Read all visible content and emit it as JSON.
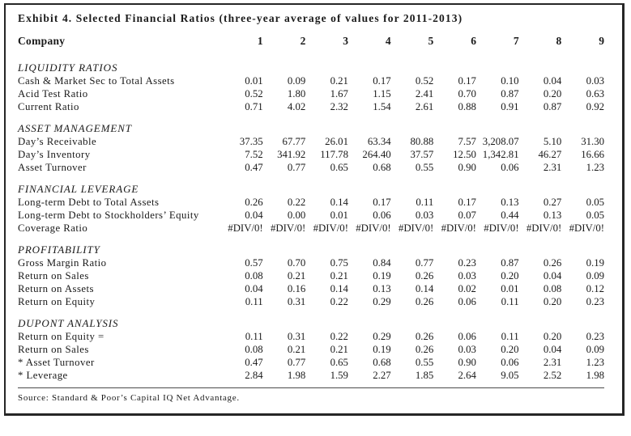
{
  "title": "Exhibit 4. Selected Financial Ratios (three-year average of values for 2011-2013)",
  "table": {
    "label_header": "Company",
    "column_headers": [
      "1",
      "2",
      "3",
      "4",
      "5",
      "6",
      "7",
      "8",
      "9"
    ],
    "sections": [
      {
        "name": "LIQUIDITY RATIOS",
        "rows": [
          {
            "label": "Cash & Market Sec to Total Assets",
            "values": [
              "0.01",
              "0.09",
              "0.21",
              "0.17",
              "0.52",
              "0.17",
              "0.10",
              "0.04",
              "0.03"
            ]
          },
          {
            "label": "Acid Test Ratio",
            "values": [
              "0.52",
              "1.80",
              "1.67",
              "1.15",
              "2.41",
              "0.70",
              "0.87",
              "0.20",
              "0.63"
            ]
          },
          {
            "label": "Current Ratio",
            "values": [
              "0.71",
              "4.02",
              "2.32",
              "1.54",
              "2.61",
              "0.88",
              "0.91",
              "0.87",
              "0.92"
            ]
          }
        ]
      },
      {
        "name": "ASSET MANAGEMENT",
        "rows": [
          {
            "label": "Day’s Receivable",
            "values": [
              "37.35",
              "67.77",
              "26.01",
              "63.34",
              "80.88",
              "7.57",
              "3,208.07",
              "5.10",
              "31.30"
            ]
          },
          {
            "label": "Day’s Inventory",
            "values": [
              "7.52",
              "341.92",
              "117.78",
              "264.40",
              "37.57",
              "12.50",
              "1,342.81",
              "46.27",
              "16.66"
            ]
          },
          {
            "label": "Asset Turnover",
            "values": [
              "0.47",
              "0.77",
              "0.65",
              "0.68",
              "0.55",
              "0.90",
              "0.06",
              "2.31",
              "1.23"
            ]
          }
        ]
      },
      {
        "name": "FINANCIAL LEVERAGE",
        "rows": [
          {
            "label": "Long-term Debt to Total Assets",
            "values": [
              "0.26",
              "0.22",
              "0.14",
              "0.17",
              "0.11",
              "0.17",
              "0.13",
              "0.27",
              "0.05"
            ]
          },
          {
            "label": "Long-term Debt to Stockholders’ Equity",
            "values": [
              "0.04",
              "0.00",
              "0.01",
              "0.06",
              "0.03",
              "0.07",
              "0.44",
              "0.13",
              "0.05"
            ]
          },
          {
            "label": "Coverage Ratio",
            "values": [
              "#DIV/0!",
              "#DIV/0!",
              "#DIV/0!",
              "#DIV/0!",
              "#DIV/0!",
              "#DIV/0!",
              "#DIV/0!",
              "#DIV/0!",
              "#DIV/0!"
            ]
          }
        ]
      },
      {
        "name": "PROFITABILITY",
        "rows": [
          {
            "label": "Gross Margin Ratio",
            "values": [
              "0.57",
              "0.70",
              "0.75",
              "0.84",
              "0.77",
              "0.23",
              "0.87",
              "0.26",
              "0.19"
            ]
          },
          {
            "label": "Return on Sales",
            "values": [
              "0.08",
              "0.21",
              "0.21",
              "0.19",
              "0.26",
              "0.03",
              "0.20",
              "0.04",
              "0.09"
            ]
          },
          {
            "label": "Return on Assets",
            "values": [
              "0.04",
              "0.16",
              "0.14",
              "0.13",
              "0.14",
              "0.02",
              "0.01",
              "0.08",
              "0.12"
            ]
          },
          {
            "label": "Return on Equity",
            "values": [
              "0.11",
              "0.31",
              "0.22",
              "0.29",
              "0.26",
              "0.06",
              "0.11",
              "0.20",
              "0.23"
            ]
          }
        ]
      },
      {
        "name": "DUPONT ANALYSIS",
        "rows": [
          {
            "label": "Return on Equity =",
            "values": [
              "0.11",
              "0.31",
              "0.22",
              "0.29",
              "0.26",
              "0.06",
              "0.11",
              "0.20",
              "0.23"
            ]
          },
          {
            "label": "Return on Sales",
            "values": [
              "0.08",
              "0.21",
              "0.21",
              "0.19",
              "0.26",
              "0.03",
              "0.20",
              "0.04",
              "0.09"
            ]
          },
          {
            "label": "* Asset Turnover",
            "values": [
              "0.47",
              "0.77",
              "0.65",
              "0.68",
              "0.55",
              "0.90",
              "0.06",
              "2.31",
              "1.23"
            ]
          },
          {
            "label": "* Leverage",
            "values": [
              "2.84",
              "1.98",
              "1.59",
              "2.27",
              "1.85",
              "2.64",
              "9.05",
              "2.52",
              "1.98"
            ]
          }
        ]
      }
    ]
  },
  "source": "Source: Standard & Poor’s Capital IQ Net Advantage."
}
